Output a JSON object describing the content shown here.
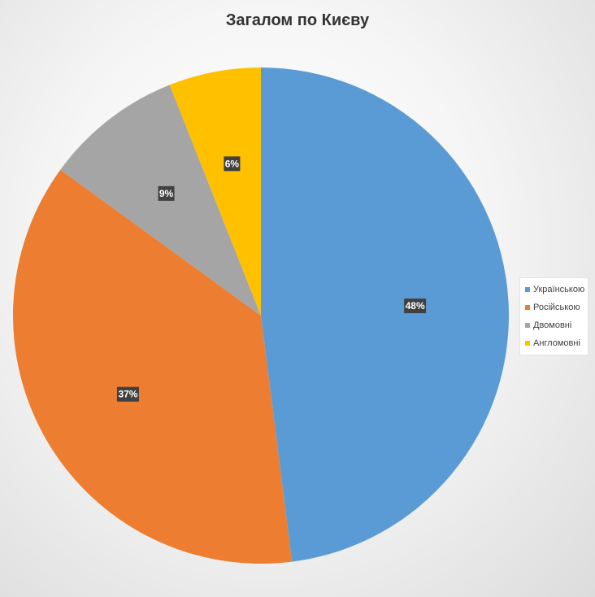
{
  "chart_data": {
    "type": "pie",
    "title": "Загалом по Києву",
    "categories": [
      "Українською",
      "Російською",
      "Двомовні",
      "Англомовні"
    ],
    "values": [
      48,
      37,
      9,
      6
    ],
    "data_labels": [
      "48%",
      "37%",
      "9%",
      "6%"
    ],
    "colors": [
      "#5B9BD5",
      "#ED7D31",
      "#A5A5A5",
      "#FFC000"
    ],
    "legend_position": "right"
  }
}
